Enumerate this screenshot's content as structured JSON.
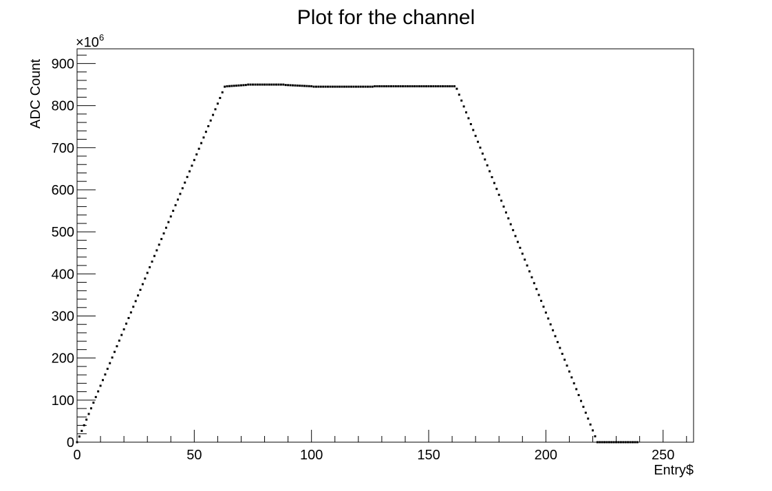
{
  "chart_data": {
    "type": "scatter",
    "title": "Plot for the channel",
    "xlabel": "Entry$",
    "ylabel": "ADC Count",
    "y_multiplier": {
      "base": "×10",
      "power": "6"
    },
    "xlim": [
      0,
      263
    ],
    "ylim": [
      0,
      935
    ],
    "x_ticks": [
      0,
      50,
      100,
      150,
      200,
      250
    ],
    "x_tick_labels": [
      "0",
      "50",
      "100",
      "150",
      "200",
      "250"
    ],
    "x_minor_step": 10,
    "y_ticks": [
      0,
      100,
      200,
      300,
      400,
      500,
      600,
      700,
      800,
      900
    ],
    "y_tick_labels": [
      "0",
      "100",
      "200",
      "300",
      "400",
      "500",
      "600",
      "700",
      "800",
      "900"
    ],
    "y_minor_step": 20,
    "grid": false,
    "marker_color": "#000000",
    "series": [
      {
        "segments": [
          {
            "x0": 0,
            "x1": 63,
            "y0": 0,
            "y1": 845
          },
          {
            "x0": 64,
            "x1": 72,
            "y0": 846,
            "y1": 849
          },
          {
            "x0": 73,
            "x1": 88,
            "y0": 850,
            "y1": 850
          },
          {
            "x0": 89,
            "x1": 100,
            "y0": 849,
            "y1": 846
          },
          {
            "x0": 101,
            "x1": 126,
            "y0": 845,
            "y1": 845
          },
          {
            "x0": 127,
            "x1": 161,
            "y0": 846,
            "y1": 846
          },
          {
            "x0": 162,
            "x1": 222,
            "y0": 840,
            "y1": 0
          },
          {
            "x0": 223,
            "x1": 239,
            "y0": 0,
            "y1": 0
          }
        ]
      }
    ]
  }
}
